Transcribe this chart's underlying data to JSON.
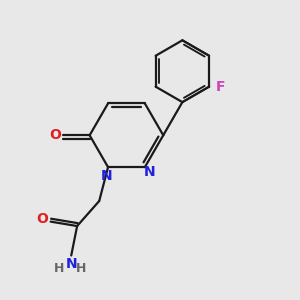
{
  "bg_color": "#e8e8e8",
  "bond_color": "#1a1a1a",
  "N_color": "#2020dd",
  "O_color": "#dd2020",
  "F_color": "#cc44bb",
  "line_width": 1.6,
  "font_size": 10,
  "figsize": [
    3.0,
    3.0
  ],
  "dpi": 100,
  "xlim": [
    0,
    10
  ],
  "ylim": [
    0,
    10
  ]
}
